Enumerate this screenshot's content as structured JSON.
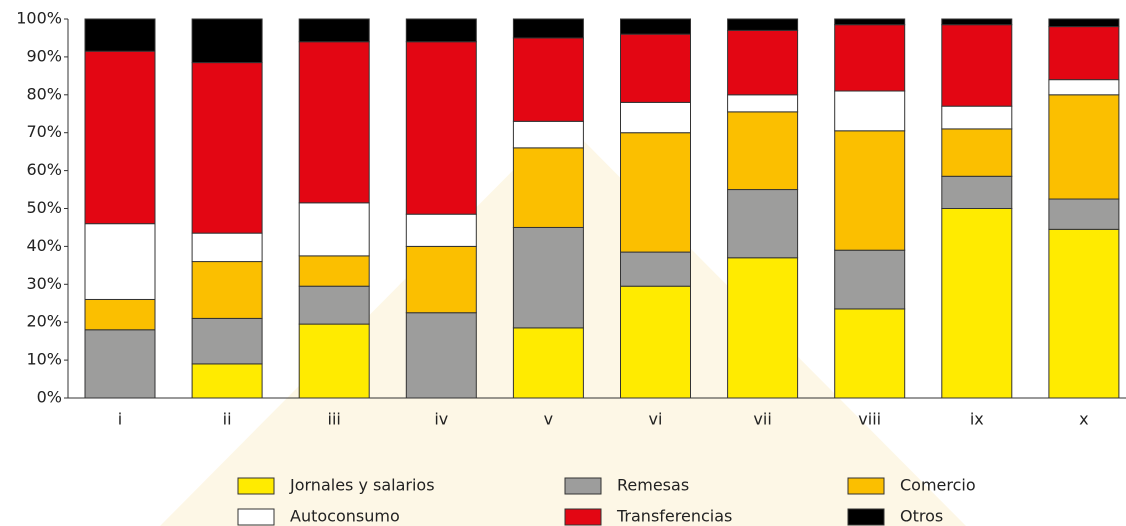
{
  "chart_data": {
    "type": "stacked-bar",
    "categories": [
      "i",
      "ii",
      "iii",
      "iv",
      "v",
      "vi",
      "vii",
      "viii",
      "ix",
      "x"
    ],
    "series": [
      {
        "name": "Jornales y salarios",
        "color": "#ffeb00",
        "values": [
          0,
          9,
          19.5,
          0,
          18.5,
          29.5,
          37,
          23.5,
          50,
          44.5
        ]
      },
      {
        "name": "Remesas",
        "color": "#9d9d9c",
        "values": [
          18,
          12,
          10,
          22.5,
          26.5,
          9,
          18,
          15.5,
          8.5,
          8
        ]
      },
      {
        "name": "Comercio",
        "color": "#fbbf00",
        "values": [
          8,
          15,
          8,
          17.5,
          21,
          31.5,
          20.5,
          31.5,
          12.5,
          27.5
        ]
      },
      {
        "name": "Autoconsumo",
        "color": "#ffffff",
        "values": [
          20,
          7.5,
          14,
          8.5,
          7,
          8,
          4.5,
          10.5,
          6,
          4
        ]
      },
      {
        "name": "Transferencias",
        "color": "#e30613",
        "values": [
          45.5,
          45,
          42.5,
          45.5,
          22,
          18,
          17,
          17.5,
          21.5,
          14
        ]
      },
      {
        "name": "Otros",
        "color": "#000000",
        "values": [
          8.5,
          11.5,
          6,
          6,
          5,
          4,
          3,
          1.5,
          1.5,
          2
        ]
      }
    ],
    "ylim": [
      0,
      100
    ],
    "yticks": [
      {
        "value": 0,
        "label": "0%"
      },
      {
        "value": 10,
        "label": "10%"
      },
      {
        "value": 20,
        "label": "20%"
      },
      {
        "value": 30,
        "label": "30%"
      },
      {
        "value": 40,
        "label": "40%"
      },
      {
        "value": 50,
        "label": "50%"
      },
      {
        "value": 60,
        "label": "60%"
      },
      {
        "value": 70,
        "label": "70%"
      },
      {
        "value": 80,
        "label": "80%"
      },
      {
        "value": 90,
        "label": "90%"
      },
      {
        "value": 100,
        "label": "100%"
      }
    ],
    "legend": "bottom"
  }
}
